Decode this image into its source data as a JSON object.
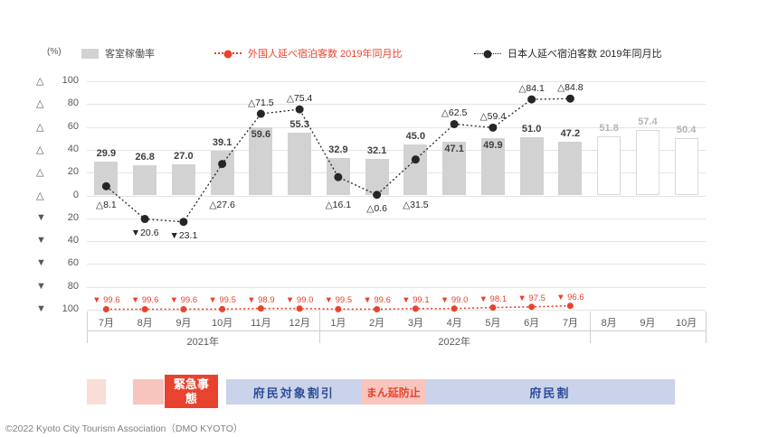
{
  "unit_label": "(%)",
  "legend": {
    "bars": "客室稼働率",
    "foreign": "外国人延べ宿泊客数  2019年同月比",
    "japanese": "日本人延べ宿泊客数  2019年同月比"
  },
  "footer": "©2022 Kyoto City Tourism Association（DMO KYOTO）",
  "colors": {
    "bar": "#d2d2d2",
    "bar_forecast_border": "#d9d9d9",
    "bar_label": "#3f3f3f",
    "bar_forecast_label": "#b4b4b4",
    "red": "#e8432e",
    "black": "#262626",
    "grid": "#e4e4e4",
    "band_blue": "#cad3ea",
    "band_blue_text": "#2e4d96",
    "band_pink": "#f7c5bd",
    "band_pale": "#f8ddd8",
    "band_red": "#e8432e"
  },
  "chart_data": {
    "type": "combo bar+line",
    "title": "",
    "categories": [
      "7月",
      "8月",
      "9月",
      "10月",
      "11月",
      "12月",
      "1月",
      "2月",
      "3月",
      "4月",
      "5月",
      "6月",
      "7月",
      "8月",
      "9月",
      "10月"
    ],
    "ylim": [
      -100,
      100
    ],
    "grid": true,
    "y_axis_labels": [
      "△ 100",
      "△ 80",
      "△ 60",
      "△ 40",
      "△ 20",
      "△ 0",
      "▼ 20",
      "▼ 40",
      "▼ 60",
      "▼ 80",
      "▼ 100"
    ],
    "year_groups": [
      {
        "label": "2021年",
        "from": 0,
        "to": 6
      },
      {
        "label": "2022年",
        "from": 6,
        "to": 13
      }
    ],
    "series": [
      {
        "name": "客室稼働率",
        "type": "bar",
        "values": [
          29.9,
          26.8,
          27.0,
          39.1,
          59.6,
          55.3,
          32.9,
          32.1,
          45.0,
          47.1,
          49.9,
          51.0,
          47.2,
          51.8,
          57.4,
          50.4
        ],
        "forecast_from": 13
      },
      {
        "name": "外国人延べ宿泊客数 2019年同月比",
        "type": "line",
        "values": [
          -99.6,
          -99.6,
          -99.6,
          -99.5,
          -98.9,
          -99.0,
          -99.5,
          -99.6,
          -99.1,
          -99.0,
          -98.1,
          -97.5,
          -96.6
        ],
        "point_labels": [
          "▼ 99.6",
          "▼ 99.6",
          "▼ 99.6",
          "▼ 99.5",
          "▼ 98.9",
          "▼ 99.0",
          "▼ 99.5",
          "▼ 99.6",
          "▼ 99.1",
          "▼ 99.0",
          "▼ 98.1",
          "▼ 97.5",
          "▼ 96.6"
        ]
      },
      {
        "name": "日本人延べ宿泊客数 2019年同月比",
        "type": "line",
        "values": [
          8.1,
          -20.6,
          -23.1,
          27.6,
          71.5,
          75.4,
          16.1,
          0.6,
          31.5,
          62.5,
          59.4,
          84.1,
          84.8
        ],
        "point_labels": [
          "△8.1",
          "▼20.6",
          "▼23.1",
          "△27.6",
          "△71.5",
          "△75.4",
          "△16.1",
          "△0.6",
          "△31.5",
          "△62.5",
          "△59.4",
          "△84.1",
          "△84.8"
        ]
      }
    ]
  },
  "timeline": [
    {
      "label": "",
      "type": "pale",
      "from": 0.0,
      "to": 0.5
    },
    {
      "label": "",
      "type": "pink",
      "from": 1.2,
      "to": 2.0
    },
    {
      "label": "緊急事態",
      "type": "red",
      "from": 2.0,
      "to": 3.4
    },
    {
      "label": "府民対象割引",
      "type": "blue",
      "from": 3.6,
      "to": 7.1
    },
    {
      "label": "まん延防止",
      "type": "pink",
      "from": 7.1,
      "to": 8.75
    },
    {
      "label": "府民割",
      "type": "blue",
      "from": 8.75,
      "to": 15.2
    }
  ]
}
